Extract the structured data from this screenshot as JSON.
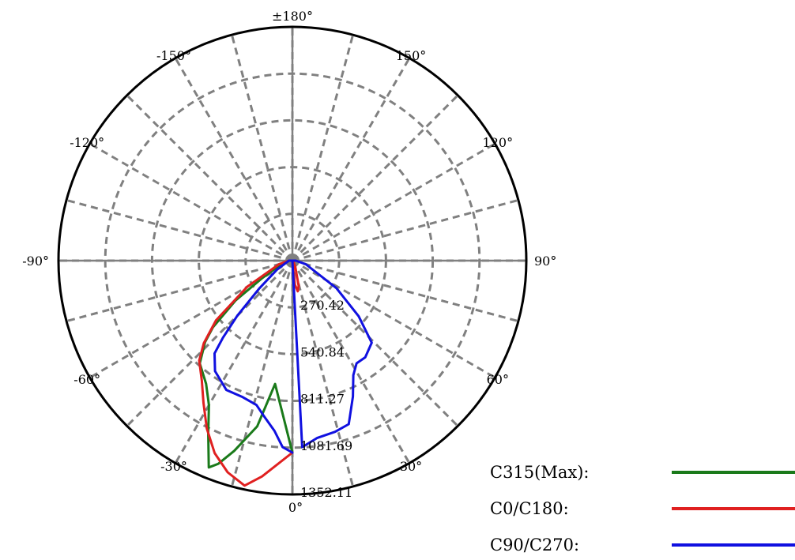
{
  "chart_data": {
    "type": "polar-line",
    "title": "",
    "angle_labels": [
      {
        "angle": 180,
        "text": "±180°"
      },
      {
        "angle": 150,
        "text": "150°"
      },
      {
        "angle": 120,
        "text": "120°"
      },
      {
        "angle": 90,
        "text": "90°"
      },
      {
        "angle": 60,
        "text": "60°"
      },
      {
        "angle": 30,
        "text": "30°"
      },
      {
        "angle": 0,
        "text": "0°"
      },
      {
        "angle": -30,
        "text": "-30°"
      },
      {
        "angle": -60,
        "text": "-60°"
      },
      {
        "angle": -90,
        "text": "-90°"
      },
      {
        "angle": -120,
        "text": "-120°"
      },
      {
        "angle": -150,
        "text": "-150°"
      }
    ],
    "radial_ticks": [
      {
        "value": 270.42,
        "text": "270.42"
      },
      {
        "value": 540.84,
        "text": "540.84"
      },
      {
        "value": 811.27,
        "text": "811.27"
      },
      {
        "value": 1081.69,
        "text": "1081.69"
      },
      {
        "value": 1352.11,
        "text": "1352.11"
      }
    ],
    "r_max": 1352.11,
    "angle_step_deg": 15,
    "grid": true,
    "legend_position": "bottom-right",
    "series": [
      {
        "name": "C315(Max):",
        "color": "#1a7a1a",
        "points": [
          [
            0,
            1110
          ],
          [
            -8,
            720
          ],
          [
            -12,
            980
          ],
          [
            -17,
            1150
          ],
          [
            -20,
            1250
          ],
          [
            -22,
            1290
          ],
          [
            -26,
            1110
          ],
          [
            -30,
            965
          ],
          [
            -35,
            870
          ],
          [
            -42,
            800
          ],
          [
            -47,
            690
          ],
          [
            -50,
            600
          ],
          [
            -55,
            400
          ],
          [
            -60,
            200
          ],
          [
            -75,
            60
          ],
          [
            -90,
            20
          ],
          [
            -120,
            0
          ]
        ]
      },
      {
        "name": "C0/C180:",
        "color": "#e02020",
        "points": [
          [
            0,
            1110
          ],
          [
            -8,
            1260
          ],
          [
            -12,
            1330
          ],
          [
            -17,
            1280
          ],
          [
            -22,
            1200
          ],
          [
            -27,
            1090
          ],
          [
            -32,
            970
          ],
          [
            -37,
            870
          ],
          [
            -43,
            790
          ],
          [
            -47,
            700
          ],
          [
            -52,
            560
          ],
          [
            -60,
            300
          ],
          [
            -75,
            80
          ],
          [
            -90,
            20
          ],
          [
            -120,
            0
          ],
          [
            0,
            0
          ],
          [
            6,
            140
          ],
          [
            10,
            180
          ],
          [
            14,
            150
          ],
          [
            25,
            40
          ],
          [
            40,
            10
          ],
          [
            90,
            0
          ]
        ]
      },
      {
        "name": "C90/C270:",
        "color": "#1010e0",
        "points": [
          [
            0,
            1110
          ],
          [
            -3,
            1080
          ],
          [
            -6,
            990
          ],
          [
            -10,
            920
          ],
          [
            -14,
            860
          ],
          [
            -20,
            840
          ],
          [
            -27,
            840
          ],
          [
            -35,
            780
          ],
          [
            -40,
            700
          ],
          [
            -42,
            600
          ],
          [
            -45,
            450
          ],
          [
            -50,
            250
          ],
          [
            -60,
            100
          ],
          [
            -90,
            20
          ],
          [
            -120,
            0
          ],
          [
            0,
            0
          ],
          [
            3,
            1080
          ],
          [
            8,
            1035
          ],
          [
            14,
            1020
          ],
          [
            19,
            1000
          ],
          [
            24,
            860
          ],
          [
            28,
            750
          ],
          [
            32,
            700
          ],
          [
            37,
            700
          ],
          [
            44,
            660
          ],
          [
            50,
            500
          ],
          [
            58,
            300
          ],
          [
            75,
            80
          ],
          [
            90,
            20
          ],
          [
            120,
            0
          ]
        ]
      }
    ]
  }
}
